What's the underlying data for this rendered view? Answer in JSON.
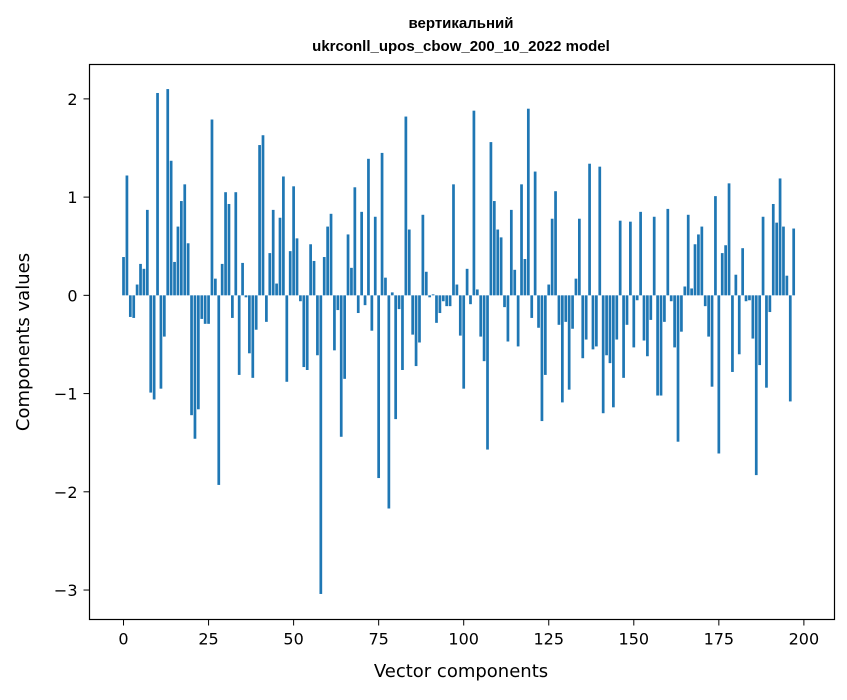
{
  "chart_data": {
    "type": "bar",
    "title_line1": "вертикальний",
    "title_line2": "ukrconll_upos_cbow_200_10_2022 model",
    "xlabel": "Vector components",
    "ylabel": "Components values",
    "xlim": [
      -10,
      209
    ],
    "ylim": [
      -3.3,
      2.35
    ],
    "xticks": [
      0,
      25,
      50,
      75,
      100,
      125,
      150,
      175,
      200
    ],
    "xtick_labels": [
      "0",
      "25",
      "50",
      "75",
      "100",
      "125",
      "150",
      "175",
      "200"
    ],
    "yticks": [
      -3,
      -2,
      -1,
      0,
      1,
      2
    ],
    "ytick_labels": [
      "−3",
      "−2",
      "−1",
      "0",
      "1",
      "2"
    ],
    "bar_color": "#1f77b4",
    "grid": false,
    "values": [
      0.39,
      1.22,
      -0.22,
      -0.23,
      0.11,
      0.32,
      0.27,
      0.87,
      -0.99,
      -1.06,
      2.06,
      -0.95,
      -0.42,
      2.1,
      1.37,
      0.34,
      0.7,
      0.96,
      1.13,
      0.53,
      -1.22,
      -1.46,
      -1.16,
      -0.24,
      -0.29,
      -0.29,
      1.79,
      0.17,
      -1.93,
      0.32,
      1.05,
      0.93,
      -0.23,
      1.05,
      -0.81,
      0.33,
      -0.02,
      -0.59,
      -0.84,
      -0.35,
      1.53,
      1.63,
      -0.27,
      0.43,
      0.87,
      0.12,
      0.79,
      1.21,
      -0.88,
      0.45,
      1.11,
      0.58,
      -0.06,
      -0.73,
      -0.76,
      0.52,
      0.35,
      -0.61,
      -3.04,
      0.39,
      0.7,
      0.83,
      -0.56,
      -0.15,
      -1.44,
      -0.85,
      0.62,
      0.28,
      1.1,
      -0.18,
      0.85,
      -0.1,
      1.39,
      -0.36,
      0.8,
      -1.86,
      1.45,
      0.18,
      -2.17,
      0.03,
      -1.26,
      -0.14,
      -0.76,
      1.82,
      0.67,
      -0.4,
      -0.72,
      -0.48,
      0.82,
      0.24,
      -0.02,
      0.01,
      -0.28,
      -0.18,
      -0.06,
      -0.11,
      -0.11,
      1.13,
      0.11,
      -0.41,
      -0.95,
      0.27,
      -0.09,
      1.88,
      0.06,
      -0.42,
      -0.67,
      -1.57,
      1.56,
      0.96,
      0.67,
      0.59,
      -0.12,
      -0.47,
      0.87,
      0.26,
      -0.52,
      1.13,
      0.37,
      1.9,
      -0.23,
      1.26,
      -0.33,
      -1.28,
      -0.81,
      0.11,
      0.78,
      1.06,
      -0.3,
      -1.09,
      -0.27,
      -0.96,
      -0.34,
      0.17,
      0.78,
      -0.64,
      -0.45,
      1.34,
      -0.55,
      -0.52,
      1.31,
      -1.2,
      -0.61,
      -0.69,
      -1.14,
      -0.45,
      0.76,
      -0.84,
      -0.3,
      0.75,
      -0.53,
      -0.05,
      0.85,
      -0.46,
      -0.62,
      -0.25,
      0.8,
      -1.02,
      -1.02,
      -0.27,
      0.88,
      -0.06,
      -0.53,
      -1.49,
      -0.37,
      0.09,
      0.82,
      0.07,
      0.52,
      0.62,
      0.7,
      -0.11,
      -0.42,
      -0.93,
      1.01,
      -1.61,
      0.43,
      0.51,
      1.14,
      -0.78,
      0.21,
      -0.6,
      0.48,
      -0.06,
      -0.05,
      -0.44,
      -1.83,
      -0.71,
      0.8,
      -0.94,
      -0.17,
      0.93,
      0.74,
      1.19,
      0.7,
      0.2,
      -1.08,
      0.68
    ]
  }
}
